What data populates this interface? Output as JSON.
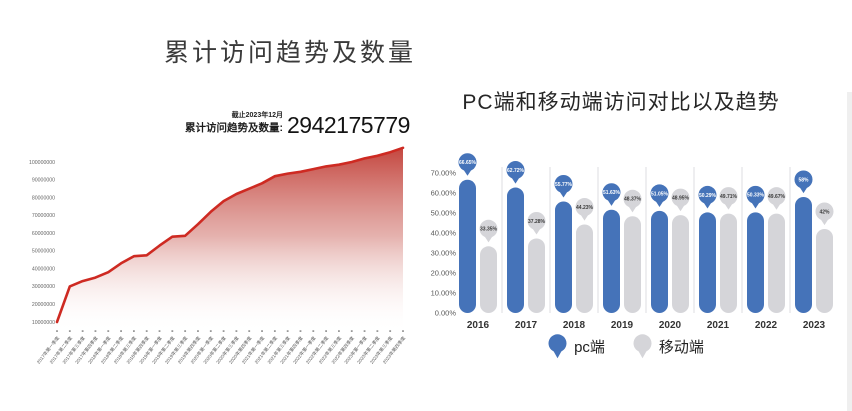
{
  "chart_data": [
    {
      "type": "area",
      "title": "累计访问趋势及数量",
      "as_of": "截止2023年12月",
      "total_label": "累计访问趋势及数量:",
      "total_value": "2942175779",
      "line_color": "#ce2a22",
      "fill_top_color": "#bf362e",
      "ylim": [
        10000000,
        110000000
      ],
      "y_ticks": [
        "100000000",
        "90000000",
        "80000000",
        "70000000",
        "60000000",
        "50000000",
        "40000000",
        "30000000",
        "20000000",
        "10000000"
      ],
      "x": [
        "2017年第一季度",
        "2017年第二季度",
        "2017年第三季度",
        "2017年第四季度",
        "2018年第一季度",
        "2018年第二季度",
        "2018年第三季度",
        "2018年第四季度",
        "2019年第一季度",
        "2019年第二季度",
        "2019年第三季度",
        "2019年第四季度",
        "2020年第一季度",
        "2020年第二季度",
        "2020年第三季度",
        "2020年第四季度",
        "2021年第一季度",
        "2021年第二季度",
        "2021年第三季度",
        "2021年第四季度",
        "2022年第一季度",
        "2022年第二季度",
        "2022年第三季度",
        "2022年第四季度",
        "2023年第一季度",
        "2023年第二季度",
        "2023年第三季度",
        "2023年第四季度"
      ],
      "values": [
        10000000,
        30000000,
        33000000,
        35000000,
        38000000,
        43000000,
        47000000,
        47500000,
        53000000,
        58000000,
        58500000,
        65000000,
        72000000,
        78000000,
        82000000,
        85000000,
        88000000,
        92000000,
        93500000,
        94500000,
        96000000,
        97500000,
        98500000,
        100000000,
        102000000,
        103500000,
        105500000,
        108000000
      ]
    },
    {
      "type": "bar",
      "title": "PC端和移动端访问对比以及趋势",
      "categories": [
        "2016",
        "2017",
        "2018",
        "2019",
        "2020",
        "2021",
        "2022",
        "2023"
      ],
      "series": [
        {
          "name": "pc端",
          "color": "#4573b9",
          "label_text_color": "#ffffff",
          "values": [
            66.65,
            62.72,
            55.77,
            51.63,
            51.05,
            50.29,
            50.33,
            58
          ],
          "labels": [
            "66.65%",
            "62.72%",
            "55.77%",
            "51.63%",
            "51.05%",
            "50.29%",
            "50.33%",
            "58%"
          ]
        },
        {
          "name": "移动端",
          "color": "#d5d5d9",
          "label_text_color": "#3a3a3a",
          "values": [
            33.35,
            37.28,
            44.23,
            48.37,
            48.95,
            49.71,
            49.67,
            42
          ],
          "labels": [
            "33.35%",
            "37.28%",
            "44.23%",
            "48.37%",
            "48.95%",
            "49.71%",
            "49.67%",
            "42%"
          ]
        }
      ],
      "y_ticks": [
        "70.00%",
        "60.00%",
        "50.00%",
        "40.00%",
        "30.00%",
        "20.00%",
        "10.00%",
        "0.00%"
      ],
      "ylim": [
        0,
        70
      ],
      "legend_position": "bottom",
      "separator_color": "#dedee2"
    }
  ]
}
